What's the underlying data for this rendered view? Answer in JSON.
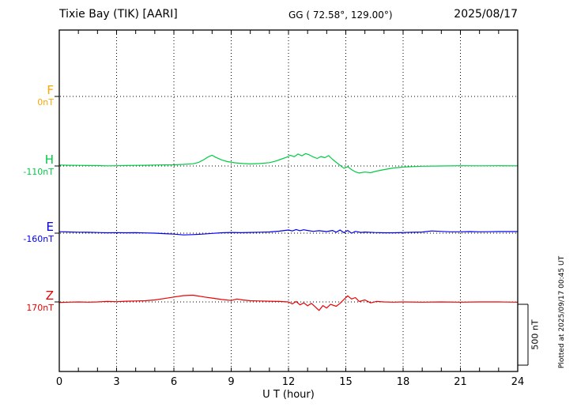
{
  "header": {
    "title": "Tixie Bay (TIK)  [AARI]",
    "coords": "GG ( 72.58°, 129.00°)",
    "date": "2025/08/17"
  },
  "axis": {
    "xlabel": "U T (hour)"
  },
  "scale_bar": {
    "label": "500 nT",
    "value_nT": 500
  },
  "watermark": {
    "plotted_at": "Plotted at 2025/09/17 00:45 UT"
  },
  "chart_data": {
    "type": "line",
    "title": "Tixie Bay (TIK) [AARI] magnetogram",
    "xlabel": "U T (hour)",
    "x_range": [
      0,
      24
    ],
    "x_ticks": [
      0,
      3,
      6,
      9,
      12,
      15,
      18,
      21,
      24
    ],
    "grid": "dotted vertical lines every 3 h; dotted horizontal baseline per component",
    "legend_position": "left axis labels",
    "scale_bar_nT": 500,
    "series": [
      {
        "name": "F",
        "baseline_label": "0nT",
        "baseline_nT": 0,
        "color": "#ffa500",
        "points": []
      },
      {
        "name": "H",
        "baseline_label": "-110nT",
        "baseline_nT": -110,
        "color": "#00cc44",
        "points": [
          [
            0,
            8
          ],
          [
            0.5,
            6
          ],
          [
            1,
            5
          ],
          [
            1.5,
            4
          ],
          [
            2,
            3
          ],
          [
            2.5,
            1
          ],
          [
            3,
            2
          ],
          [
            3.5,
            4
          ],
          [
            4,
            5
          ],
          [
            4.5,
            6
          ],
          [
            5,
            8
          ],
          [
            5.5,
            9
          ],
          [
            6,
            10
          ],
          [
            6.5,
            13
          ],
          [
            7,
            18
          ],
          [
            7.3,
            30
          ],
          [
            7.6,
            55
          ],
          [
            7.8,
            75
          ],
          [
            8,
            88
          ],
          [
            8.2,
            70
          ],
          [
            8.5,
            50
          ],
          [
            8.8,
            36
          ],
          [
            9.2,
            26
          ],
          [
            9.6,
            20
          ],
          [
            10,
            17
          ],
          [
            10.5,
            20
          ],
          [
            11,
            27
          ],
          [
            11.3,
            38
          ],
          [
            11.6,
            55
          ],
          [
            11.9,
            72
          ],
          [
            12.1,
            88
          ],
          [
            12.3,
            76
          ],
          [
            12.5,
            98
          ],
          [
            12.7,
            84
          ],
          [
            12.9,
            102
          ],
          [
            13.1,
            90
          ],
          [
            13.3,
            74
          ],
          [
            13.5,
            62
          ],
          [
            13.7,
            78
          ],
          [
            13.9,
            68
          ],
          [
            14.1,
            85
          ],
          [
            14.3,
            55
          ],
          [
            14.5,
            30
          ],
          [
            14.7,
            6
          ],
          [
            14.9,
            -18
          ],
          [
            15.1,
            -6
          ],
          [
            15.3,
            -30
          ],
          [
            15.5,
            -48
          ],
          [
            15.7,
            -58
          ],
          [
            16,
            -50
          ],
          [
            16.3,
            -55
          ],
          [
            16.6,
            -42
          ],
          [
            17,
            -30
          ],
          [
            17.5,
            -16
          ],
          [
            18,
            -9
          ],
          [
            18.5,
            -5
          ],
          [
            19,
            -2
          ],
          [
            20,
            0
          ],
          [
            21,
            2
          ],
          [
            22,
            1
          ],
          [
            23,
            2
          ],
          [
            24,
            1
          ]
        ]
      },
      {
        "name": "E",
        "baseline_label": "-160nT",
        "baseline_nT": -160,
        "color": "#0000ee",
        "points": [
          [
            0,
            12
          ],
          [
            0.5,
            10
          ],
          [
            1,
            8
          ],
          [
            1.5,
            7
          ],
          [
            2,
            5
          ],
          [
            2.5,
            3
          ],
          [
            3,
            4
          ],
          [
            3.5,
            3
          ],
          [
            4,
            4
          ],
          [
            4.5,
            2
          ],
          [
            5,
            0
          ],
          [
            5.5,
            -4
          ],
          [
            6,
            -8
          ],
          [
            6.5,
            -14
          ],
          [
            7,
            -12
          ],
          [
            7.5,
            -8
          ],
          [
            8,
            -2
          ],
          [
            8.5,
            3
          ],
          [
            9,
            6
          ],
          [
            9.5,
            4
          ],
          [
            10,
            6
          ],
          [
            10.5,
            8
          ],
          [
            11,
            10
          ],
          [
            11.5,
            16
          ],
          [
            12,
            26
          ],
          [
            12.2,
            18
          ],
          [
            12.4,
            30
          ],
          [
            12.6,
            20
          ],
          [
            12.8,
            28
          ],
          [
            13,
            22
          ],
          [
            13.3,
            15
          ],
          [
            13.6,
            20
          ],
          [
            14,
            13
          ],
          [
            14.3,
            22
          ],
          [
            14.5,
            8
          ],
          [
            14.7,
            26
          ],
          [
            14.9,
            4
          ],
          [
            15.1,
            22
          ],
          [
            15.3,
            0
          ],
          [
            15.5,
            14
          ],
          [
            15.8,
            6
          ],
          [
            16,
            9
          ],
          [
            16.5,
            5
          ],
          [
            17,
            3
          ],
          [
            17.5,
            3
          ],
          [
            18,
            5
          ],
          [
            18.5,
            7
          ],
          [
            19,
            9
          ],
          [
            19.5,
            18
          ],
          [
            20,
            14
          ],
          [
            20.5,
            11
          ],
          [
            21,
            11
          ],
          [
            21.5,
            13
          ],
          [
            22,
            11
          ],
          [
            22.5,
            12
          ],
          [
            23,
            13
          ],
          [
            23.5,
            13
          ],
          [
            24,
            13
          ]
        ]
      },
      {
        "name": "Z",
        "baseline_label": "170nT",
        "baseline_nT": 170,
        "color": "#ee0000",
        "points": [
          [
            0,
            -4
          ],
          [
            0.5,
            -2
          ],
          [
            1,
            0
          ],
          [
            1.5,
            -2
          ],
          [
            2,
            0
          ],
          [
            2.5,
            4
          ],
          [
            3,
            2
          ],
          [
            3.5,
            6
          ],
          [
            4,
            8
          ],
          [
            4.5,
            10
          ],
          [
            5,
            16
          ],
          [
            5.5,
            28
          ],
          [
            6,
            40
          ],
          [
            6.5,
            52
          ],
          [
            7,
            55
          ],
          [
            7.3,
            48
          ],
          [
            7.6,
            40
          ],
          [
            8,
            32
          ],
          [
            8.5,
            20
          ],
          [
            9,
            12
          ],
          [
            9.3,
            24
          ],
          [
            9.6,
            16
          ],
          [
            10,
            10
          ],
          [
            10.5,
            8
          ],
          [
            11,
            6
          ],
          [
            11.5,
            4
          ],
          [
            12,
            0
          ],
          [
            12.2,
            -16
          ],
          [
            12.4,
            4
          ],
          [
            12.6,
            -24
          ],
          [
            12.8,
            -8
          ],
          [
            13,
            -32
          ],
          [
            13.2,
            -12
          ],
          [
            13.4,
            -40
          ],
          [
            13.6,
            -70
          ],
          [
            13.8,
            -30
          ],
          [
            14,
            -50
          ],
          [
            14.2,
            -20
          ],
          [
            14.5,
            -36
          ],
          [
            14.7,
            -12
          ],
          [
            14.9,
            20
          ],
          [
            15.1,
            50
          ],
          [
            15.3,
            24
          ],
          [
            15.5,
            36
          ],
          [
            15.7,
            4
          ],
          [
            16,
            16
          ],
          [
            16.3,
            -8
          ],
          [
            16.6,
            4
          ],
          [
            17,
            0
          ],
          [
            17.5,
            -2
          ],
          [
            18,
            0
          ],
          [
            19,
            -2
          ],
          [
            20,
            0
          ],
          [
            21,
            -2
          ],
          [
            22,
            0
          ],
          [
            23,
            0
          ],
          [
            24,
            -2
          ]
        ]
      }
    ]
  }
}
